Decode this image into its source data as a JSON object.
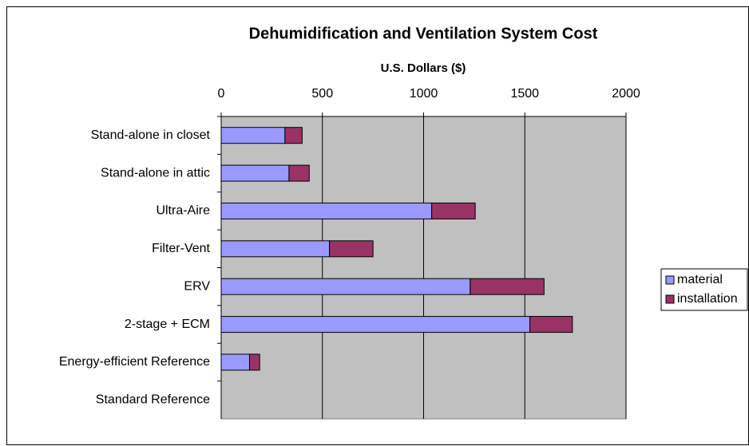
{
  "chart_data": {
    "type": "bar",
    "orientation": "horizontal",
    "stacked": true,
    "title": "Dehumidification and Ventilation System Cost",
    "xlabel": "U.S. Dollars ($)",
    "categories": [
      "Stand-alone in closet",
      "Stand-alone in attic",
      "Ultra-Aire",
      "Filter-Vent",
      "ERV",
      "2-stage + ECM",
      "Energy-efficient Reference",
      "Standard Reference"
    ],
    "series": [
      {
        "name": "material",
        "color": "#9999ff",
        "values": [
          315,
          335,
          1040,
          535,
          1230,
          1525,
          140,
          0
        ]
      },
      {
        "name": "installation",
        "color": "#993366",
        "values": [
          85,
          100,
          215,
          215,
          365,
          210,
          50,
          0
        ]
      }
    ],
    "xlim": [
      0,
      2000
    ],
    "xticks": [
      0,
      500,
      1000,
      1500,
      2000
    ],
    "grid": true,
    "legend": "right"
  }
}
